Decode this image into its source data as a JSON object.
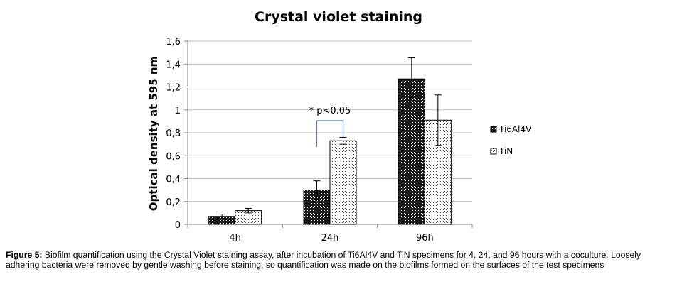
{
  "chart_data": {
    "type": "bar",
    "title": "Crystal violet staining",
    "ylabel": "Optical density at 595 nm",
    "xlabel": "",
    "categories": [
      "4h",
      "24h",
      "96h"
    ],
    "ylim": [
      0,
      1.6
    ],
    "yticks": [
      "0",
      "0,2",
      "0,4",
      "0,6",
      "0,8",
      "1",
      "1,2",
      "1,4",
      "1,6"
    ],
    "grid": true,
    "legend_position": "right",
    "series": [
      {
        "name": "Ti6Al4V",
        "values": [
          0.07,
          0.3,
          1.27
        ],
        "errors": [
          0.02,
          0.08,
          0.19
        ],
        "pattern": "dark-checker"
      },
      {
        "name": "TiN",
        "values": [
          0.12,
          0.73,
          0.91
        ],
        "errors": [
          0.02,
          0.03,
          0.22
        ],
        "pattern": "light-dots"
      }
    ],
    "annotation": {
      "text": "* p<0.05",
      "category": "24h"
    },
    "colors": {
      "bracket": "#4f81bd",
      "grid": "#bfbfbf",
      "axis": "#868686"
    }
  },
  "caption": {
    "label": "Figure 5:",
    "text": " Biofilm quantification using the Crystal Violet staining assay, after incubation of Ti6Al4V and TiN specimens for 4, 24, and 96 hours with a coculture. Loosely adhering bacteria were removed by gentle washing before staining, so quantification was made on the biofilms formed on the surfaces of the test specimens"
  }
}
